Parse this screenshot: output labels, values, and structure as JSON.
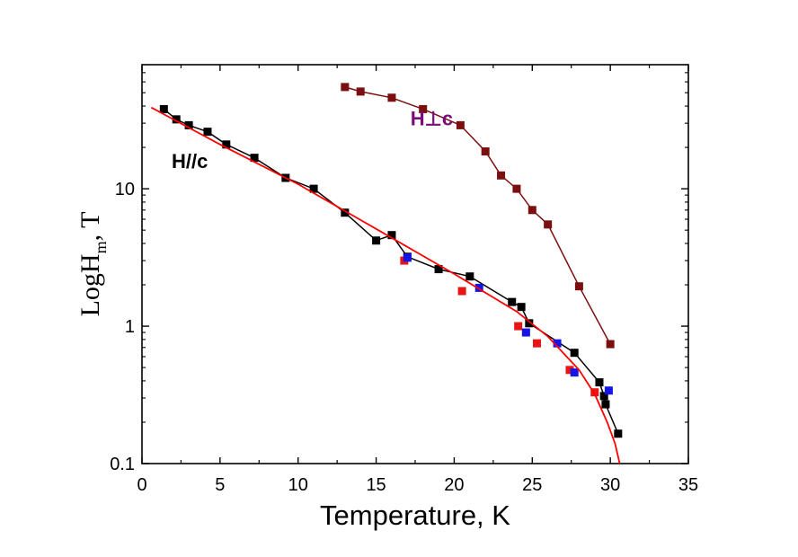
{
  "chart_data": {
    "type": "scatter",
    "title": "",
    "xlabel": "Temperature, K",
    "ylabel": {
      "main": "LogH",
      "sub": "m",
      "suffix": ", T"
    },
    "xlim": [
      0,
      35
    ],
    "ylim": [
      0.1,
      80
    ],
    "yscale": "log",
    "xticks": [
      "0",
      "5",
      "10",
      "15",
      "20",
      "25",
      "30",
      "35"
    ],
    "yticks": [
      {
        "value": 0.1,
        "label": "0.1"
      },
      {
        "value": 1,
        "label": "1"
      },
      {
        "value": 10,
        "label": "10"
      }
    ],
    "grid": false,
    "annotations": [
      {
        "text": "H//c",
        "x": 1.9,
        "y": 14.2,
        "color": "#000000"
      },
      {
        "text": "H⊥c",
        "x": 17.2,
        "y": 29,
        "color": "#7b0a7b"
      }
    ],
    "series": [
      {
        "name": "",
        "color": "#000000",
        "style": "line+markers",
        "x": [
          1.4,
          2.2,
          3.0,
          4.2,
          5.4,
          7.2,
          9.2,
          11.0,
          13.0,
          15.0,
          16.0,
          17.0,
          19.0,
          21.0,
          23.7,
          24.3,
          24.8,
          27.7,
          29.3,
          29.6,
          29.7,
          30.5
        ],
        "y": [
          38,
          32,
          29,
          26,
          21,
          16.8,
          12.0,
          10.0,
          6.7,
          4.2,
          4.6,
          3.2,
          2.6,
          2.3,
          1.5,
          1.38,
          1.05,
          0.64,
          0.39,
          0.31,
          0.27,
          0.165
        ]
      },
      {
        "name": "",
        "color": "#7b0f0f",
        "style": "line+markers",
        "x": [
          13.0,
          14.0,
          16.0,
          18.0,
          20.4,
          22.0,
          23.0,
          24.0,
          25.0,
          26.0,
          28.0,
          30.0
        ],
        "y": [
          55,
          51,
          46,
          38,
          29,
          18.7,
          12.5,
          10.0,
          7.0,
          5.5,
          1.95,
          0.74
        ]
      },
      {
        "name": "",
        "color": "#e81515",
        "style": "markers",
        "x": [
          16.8,
          20.5,
          24.1,
          25.3,
          27.4,
          29.0
        ],
        "y": [
          3.0,
          1.8,
          1.0,
          0.75,
          0.48,
          0.33
        ]
      },
      {
        "name": "",
        "color": "#1515e8",
        "style": "markers",
        "x": [
          17.0,
          21.6,
          24.6,
          26.6,
          27.7,
          29.9
        ],
        "y": [
          3.15,
          1.9,
          0.9,
          0.75,
          0.46,
          0.34
        ]
      },
      {
        "name": "",
        "color": "#ff0000",
        "style": "line",
        "x": [
          0.6,
          5,
          10,
          15,
          20,
          24,
          26,
          28,
          29,
          29.8,
          30.3,
          30.6
        ],
        "y": [
          39,
          21,
          10.8,
          5.1,
          2.4,
          1.28,
          0.84,
          0.48,
          0.32,
          0.2,
          0.14,
          0.1
        ]
      }
    ]
  }
}
